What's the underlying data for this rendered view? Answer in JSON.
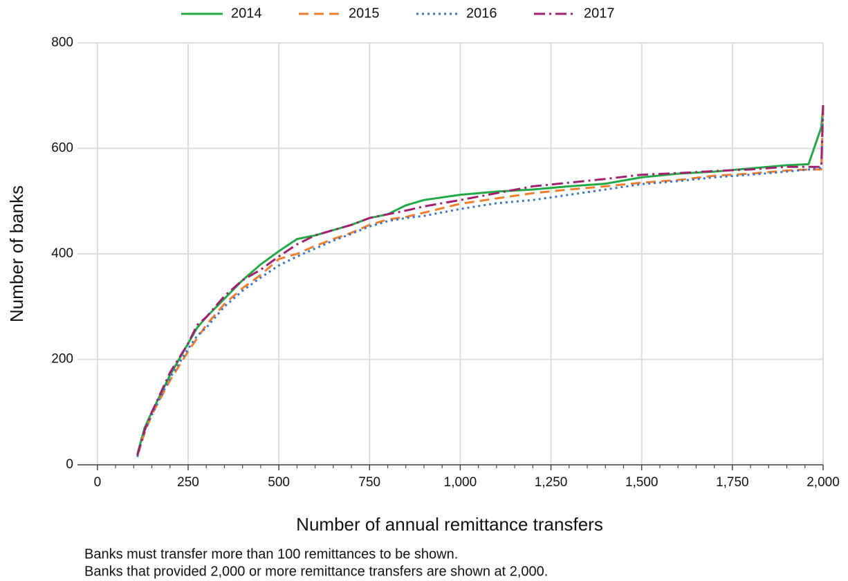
{
  "chart_data": {
    "type": "line",
    "x_label": "Number of annual remittance transfers",
    "y_label": "Number of banks",
    "annotations": [
      "Banks must transfer more than 100 remittances to be shown.",
      "Banks that provided 2,000 or more remittance transfers are shown at 2,000."
    ],
    "x": [
      110,
      130,
      150,
      200,
      250,
      275,
      300,
      350,
      400,
      450,
      500,
      550,
      600,
      650,
      700,
      750,
      800,
      850,
      900,
      1000,
      1100,
      1200,
      1300,
      1400,
      1500,
      1600,
      1700,
      1800,
      1900,
      1960,
      1995,
      2000
    ],
    "series": [
      {
        "name": "2014",
        "color": "#23a846",
        "line_style": "solid",
        "values": [
          20,
          70,
          100,
          170,
          230,
          260,
          280,
          315,
          350,
          380,
          405,
          428,
          435,
          445,
          455,
          468,
          475,
          492,
          502,
          512,
          518,
          522,
          528,
          533,
          545,
          552,
          556,
          562,
          568,
          570,
          640,
          680
        ]
      },
      {
        "name": "2015",
        "color": "#ee7d2c",
        "line_style": "dashed",
        "values": [
          18,
          60,
          95,
          160,
          215,
          240,
          265,
          305,
          335,
          360,
          390,
          400,
          415,
          428,
          440,
          455,
          465,
          470,
          478,
          495,
          505,
          515,
          522,
          528,
          535,
          540,
          548,
          552,
          558,
          560,
          560,
          680
        ]
      },
      {
        "name": "2016",
        "color": "#3a74c4",
        "line_style": "dotted",
        "values": [
          15,
          65,
          95,
          165,
          220,
          245,
          260,
          300,
          330,
          355,
          378,
          395,
          410,
          425,
          438,
          452,
          462,
          468,
          472,
          485,
          496,
          502,
          512,
          522,
          532,
          538,
          545,
          550,
          556,
          560,
          563,
          675
        ]
      },
      {
        "name": "2017",
        "color": "#a0206e",
        "line_style": "dashdot",
        "values": [
          18,
          65,
          100,
          175,
          230,
          265,
          280,
          320,
          350,
          370,
          395,
          418,
          435,
          445,
          455,
          468,
          475,
          482,
          490,
          502,
          515,
          528,
          535,
          542,
          550,
          553,
          557,
          560,
          565,
          565,
          565,
          682
        ]
      }
    ],
    "xlim": [
      -55,
      2000
    ],
    "ylim": [
      0,
      800
    ],
    "xticks": [
      0,
      250,
      500,
      750,
      {
        "value": 1000,
        "label": "1,000"
      },
      {
        "value": 1250,
        "label": "1,250"
      },
      {
        "value": 1500,
        "label": "1,500"
      },
      {
        "value": 1750,
        "label": "1,750"
      },
      {
        "value": 2000,
        "label": "2,000"
      }
    ],
    "xminorticks": [
      50,
      100,
      150,
      200,
      300,
      350,
      400,
      450,
      550,
      600,
      650,
      700,
      800,
      850,
      900,
      950,
      1050,
      1100,
      1150,
      1200,
      1300,
      1350,
      1400,
      1450,
      1550,
      1600,
      1650,
      1700,
      1800,
      1850,
      1900,
      1950
    ],
    "yticks": [
      0,
      200,
      400,
      600,
      800
    ],
    "grid": true,
    "legend": "top"
  }
}
